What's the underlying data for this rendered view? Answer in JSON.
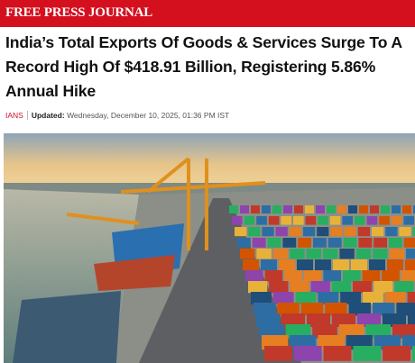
{
  "header": {
    "logo": "FREE PRESS JOURNAL"
  },
  "article": {
    "headline": "India’s Total Exports Of Goods & Services Surge To A Record High Of $418.91 Billion, Registering 5.86% Annual Hike",
    "byline": {
      "source": "IANS",
      "updated_label": "Updated:",
      "date": "Wednesday, December 10, 2025, 01:36 PM IST"
    }
  }
}
